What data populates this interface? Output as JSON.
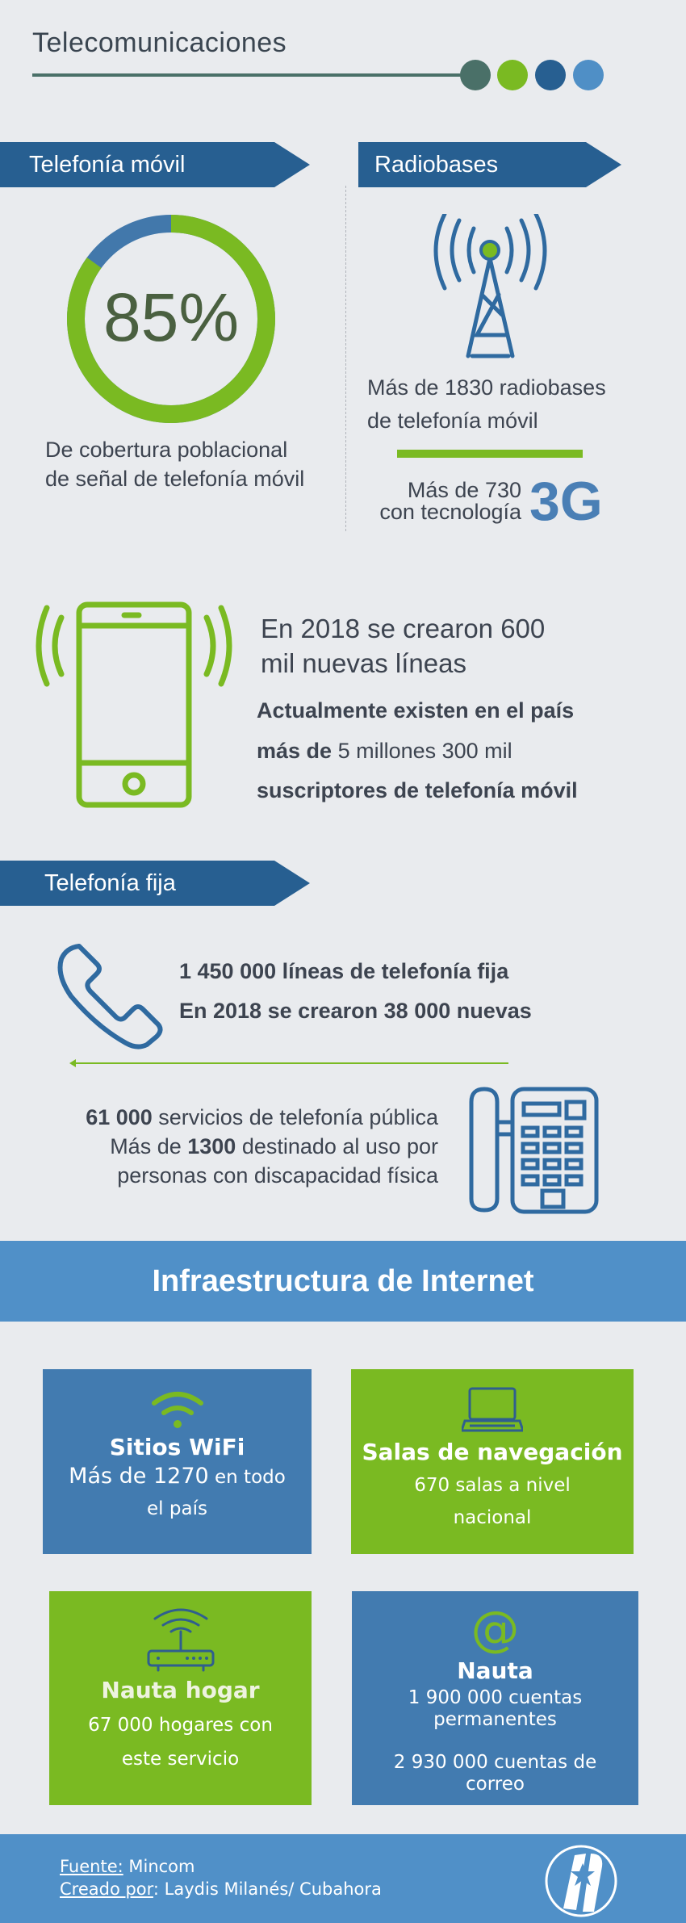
{
  "header": {
    "title": "Telecomunicaciones",
    "dot_colors": [
      "#4a7068",
      "#7aba22",
      "#275f91",
      "#4f8fc6"
    ]
  },
  "mobile": {
    "banner": "Telefonía móvil",
    "coverage": {
      "value": 85,
      "label": "85%",
      "caption_1": "De cobertura poblacional",
      "caption_2": "de señal de telefonía móvil"
    }
  },
  "radiobases": {
    "banner": "Radiobases",
    "line_1": "Más de 1830 radiobases",
    "line_2": "de telefonía móvil",
    "sub_1": "Más de 730",
    "sub_2": "con tecnología",
    "tech": "3G"
  },
  "lines": {
    "new_1": "En 2018 se crearon 600",
    "new_2": "mil nuevas líneas",
    "subs_1": "Actualmente existen en el país",
    "subs_2_bold": "más de",
    "subs_2_rest": " 5 millones 300 mil",
    "subs_3": "suscriptores de telefonía móvil"
  },
  "fixed": {
    "banner": "Telefonía fija",
    "line_1": "1 450 000 líneas de telefonía fija",
    "line_2_a": "En 2018 se crearon ",
    "line_2_b": "38 000 nuevas",
    "pub_1_bold": "61 000",
    "pub_1_rest": " servicios de telefonía pública",
    "pub_2_a": "Más de ",
    "pub_2_bold": "1300",
    "pub_2_rest": " destinado al uso por",
    "pub_3": "personas con discapacidad física"
  },
  "internet": {
    "banner": "Infraestructura de Internet",
    "cards": [
      {
        "title": "Sitios WiFi",
        "text_a": "Más de 1270",
        "text_b": " en todo",
        "text_c": "el país",
        "icon": "wifi-icon"
      },
      {
        "title": "Salas de navegación",
        "text_a": "670 salas a nivel",
        "text_b": "nacional",
        "icon": "laptop-icon"
      },
      {
        "title": "Nauta hogar",
        "text_a": "67 000 hogares  con",
        "text_b": "este servicio",
        "icon": "router-icon"
      },
      {
        "title": "Nauta",
        "text_a": "1 900 000 cuentas",
        "text_b": "permanentes",
        "text_c": "2 930 000 cuentas de",
        "text_d": "correo",
        "icon": "at-icon"
      }
    ]
  },
  "footer": {
    "source_label": "Fuente:",
    "source": " Mincom",
    "credit_label": "Creado por",
    "credit": ": Laydis Milanés/ Cubahora",
    "logo": "Cubahora"
  }
}
